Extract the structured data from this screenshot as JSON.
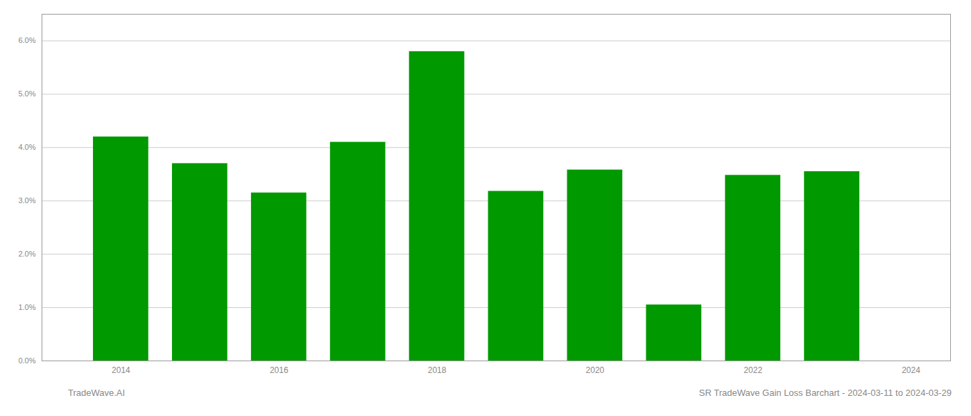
{
  "chart_data": {
    "type": "bar",
    "x": [
      2014,
      2015,
      2016,
      2017,
      2018,
      2019,
      2020,
      2021,
      2022,
      2023
    ],
    "values": [
      0.042,
      0.037,
      0.0315,
      0.041,
      0.058,
      0.0318,
      0.0358,
      0.0105,
      0.0348,
      0.0355
    ],
    "color": "#009900",
    "xlim": [
      2013.0,
      2024.5
    ],
    "xticks": [
      2014,
      2016,
      2018,
      2020,
      2022,
      2024
    ],
    "ylim": [
      0.0,
      0.065
    ],
    "yticks": [
      {
        "value": 0.0,
        "label": "0.0%"
      },
      {
        "value": 0.01,
        "label": "1.0%"
      },
      {
        "value": 0.02,
        "label": "2.0%"
      },
      {
        "value": 0.03,
        "label": "3.0%"
      },
      {
        "value": 0.04,
        "label": "4.0%"
      },
      {
        "value": 0.05,
        "label": "5.0%"
      },
      {
        "value": 0.06,
        "label": "6.0%"
      }
    ],
    "grid": true,
    "annotations": [
      "TradeWave.AI",
      "SR TradeWave Gain Loss Barchart - 2024-03-11 to 2024-03-29"
    ]
  }
}
